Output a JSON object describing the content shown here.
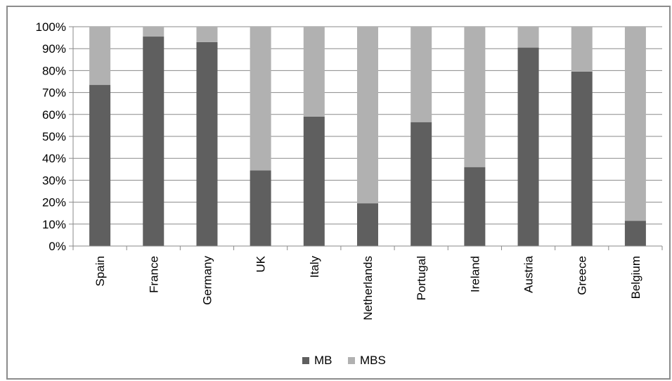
{
  "chart_data": {
    "type": "bar",
    "stacked": true,
    "percent": true,
    "categories": [
      "Spain",
      "France",
      "Germany",
      "UK",
      "Italy",
      "Netherlands",
      "Portugal",
      "Ireland",
      "Austria",
      "Greece",
      "Belgium"
    ],
    "series": [
      {
        "name": "MB",
        "color": "#5f5f5f",
        "values": [
          73.5,
          95.5,
          93,
          34.5,
          59,
          19.5,
          56.5,
          36,
          90.5,
          79.5,
          11.5
        ]
      },
      {
        "name": "MBS",
        "color": "#b1b1b1",
        "values": [
          26.5,
          4.5,
          7,
          65.5,
          41,
          80.5,
          43.5,
          64,
          9.5,
          20.5,
          88.5
        ]
      }
    ],
    "yticks": [
      "0%",
      "10%",
      "20%",
      "30%",
      "40%",
      "50%",
      "60%",
      "70%",
      "80%",
      "90%",
      "100%"
    ],
    "ylim": [
      0,
      100
    ],
    "grid": true,
    "legend_position": "bottom",
    "title": "",
    "xlabel": "",
    "ylabel": ""
  }
}
